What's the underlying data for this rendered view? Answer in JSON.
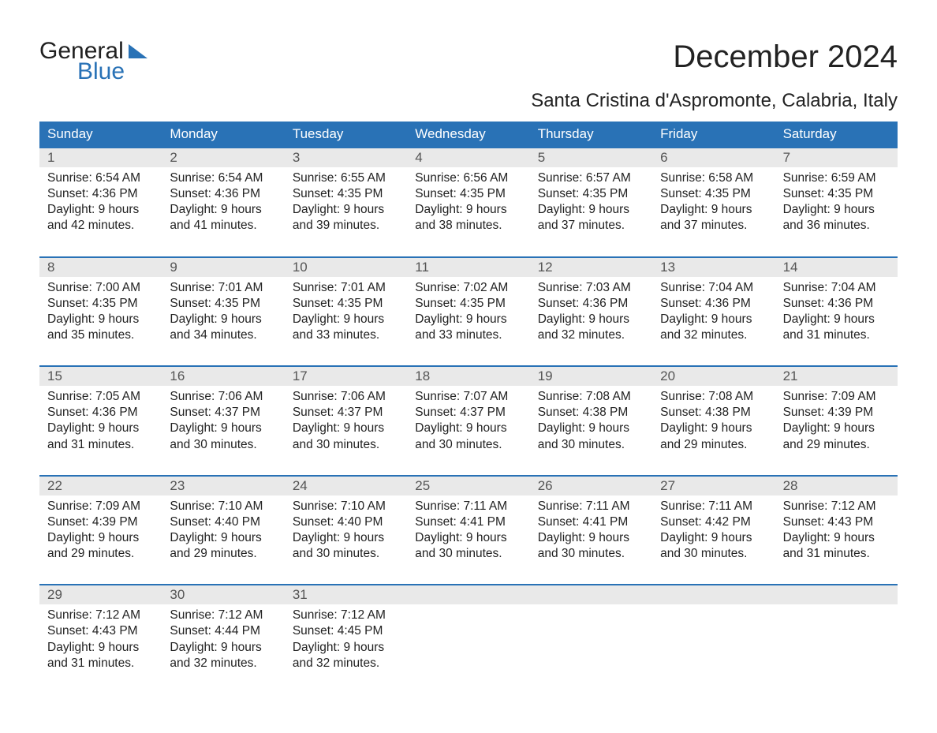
{
  "logo": {
    "line1": "General",
    "line2": "Blue",
    "text_color": "#202020",
    "blue_color": "#2972b6"
  },
  "title": "December 2024",
  "location": "Santa Cristina d'Aspromonte, Calabria, Italy",
  "colors": {
    "header_bg": "#2972b6",
    "header_text": "#ffffff",
    "daynum_bg": "#e9e9e9",
    "daynum_text": "#555555",
    "body_text": "#222222",
    "week_rule": "#2972b6",
    "page_bg": "#ffffff"
  },
  "typography": {
    "title_fontsize_pt": 30,
    "location_fontsize_pt": 18,
    "dayhead_fontsize_pt": 13,
    "daynum_fontsize_pt": 13,
    "cell_fontsize_pt": 12,
    "font_family": "Arial"
  },
  "layout": {
    "columns": 7,
    "weeks": 5
  },
  "day_headers": [
    "Sunday",
    "Monday",
    "Tuesday",
    "Wednesday",
    "Thursday",
    "Friday",
    "Saturday"
  ],
  "labels": {
    "sunrise": "Sunrise:",
    "sunset": "Sunset:",
    "daylight": "Daylight:"
  },
  "weeks": [
    [
      {
        "n": "1",
        "sunrise": "6:54 AM",
        "sunset": "4:36 PM",
        "dl1": "9 hours",
        "dl2": "and 42 minutes."
      },
      {
        "n": "2",
        "sunrise": "6:54 AM",
        "sunset": "4:36 PM",
        "dl1": "9 hours",
        "dl2": "and 41 minutes."
      },
      {
        "n": "3",
        "sunrise": "6:55 AM",
        "sunset": "4:35 PM",
        "dl1": "9 hours",
        "dl2": "and 39 minutes."
      },
      {
        "n": "4",
        "sunrise": "6:56 AM",
        "sunset": "4:35 PM",
        "dl1": "9 hours",
        "dl2": "and 38 minutes."
      },
      {
        "n": "5",
        "sunrise": "6:57 AM",
        "sunset": "4:35 PM",
        "dl1": "9 hours",
        "dl2": "and 37 minutes."
      },
      {
        "n": "6",
        "sunrise": "6:58 AM",
        "sunset": "4:35 PM",
        "dl1": "9 hours",
        "dl2": "and 37 minutes."
      },
      {
        "n": "7",
        "sunrise": "6:59 AM",
        "sunset": "4:35 PM",
        "dl1": "9 hours",
        "dl2": "and 36 minutes."
      }
    ],
    [
      {
        "n": "8",
        "sunrise": "7:00 AM",
        "sunset": "4:35 PM",
        "dl1": "9 hours",
        "dl2": "and 35 minutes."
      },
      {
        "n": "9",
        "sunrise": "7:01 AM",
        "sunset": "4:35 PM",
        "dl1": "9 hours",
        "dl2": "and 34 minutes."
      },
      {
        "n": "10",
        "sunrise": "7:01 AM",
        "sunset": "4:35 PM",
        "dl1": "9 hours",
        "dl2": "and 33 minutes."
      },
      {
        "n": "11",
        "sunrise": "7:02 AM",
        "sunset": "4:35 PM",
        "dl1": "9 hours",
        "dl2": "and 33 minutes."
      },
      {
        "n": "12",
        "sunrise": "7:03 AM",
        "sunset": "4:36 PM",
        "dl1": "9 hours",
        "dl2": "and 32 minutes."
      },
      {
        "n": "13",
        "sunrise": "7:04 AM",
        "sunset": "4:36 PM",
        "dl1": "9 hours",
        "dl2": "and 32 minutes."
      },
      {
        "n": "14",
        "sunrise": "7:04 AM",
        "sunset": "4:36 PM",
        "dl1": "9 hours",
        "dl2": "and 31 minutes."
      }
    ],
    [
      {
        "n": "15",
        "sunrise": "7:05 AM",
        "sunset": "4:36 PM",
        "dl1": "9 hours",
        "dl2": "and 31 minutes."
      },
      {
        "n": "16",
        "sunrise": "7:06 AM",
        "sunset": "4:37 PM",
        "dl1": "9 hours",
        "dl2": "and 30 minutes."
      },
      {
        "n": "17",
        "sunrise": "7:06 AM",
        "sunset": "4:37 PM",
        "dl1": "9 hours",
        "dl2": "and 30 minutes."
      },
      {
        "n": "18",
        "sunrise": "7:07 AM",
        "sunset": "4:37 PM",
        "dl1": "9 hours",
        "dl2": "and 30 minutes."
      },
      {
        "n": "19",
        "sunrise": "7:08 AM",
        "sunset": "4:38 PM",
        "dl1": "9 hours",
        "dl2": "and 30 minutes."
      },
      {
        "n": "20",
        "sunrise": "7:08 AM",
        "sunset": "4:38 PM",
        "dl1": "9 hours",
        "dl2": "and 29 minutes."
      },
      {
        "n": "21",
        "sunrise": "7:09 AM",
        "sunset": "4:39 PM",
        "dl1": "9 hours",
        "dl2": "and 29 minutes."
      }
    ],
    [
      {
        "n": "22",
        "sunrise": "7:09 AM",
        "sunset": "4:39 PM",
        "dl1": "9 hours",
        "dl2": "and 29 minutes."
      },
      {
        "n": "23",
        "sunrise": "7:10 AM",
        "sunset": "4:40 PM",
        "dl1": "9 hours",
        "dl2": "and 29 minutes."
      },
      {
        "n": "24",
        "sunrise": "7:10 AM",
        "sunset": "4:40 PM",
        "dl1": "9 hours",
        "dl2": "and 30 minutes."
      },
      {
        "n": "25",
        "sunrise": "7:11 AM",
        "sunset": "4:41 PM",
        "dl1": "9 hours",
        "dl2": "and 30 minutes."
      },
      {
        "n": "26",
        "sunrise": "7:11 AM",
        "sunset": "4:41 PM",
        "dl1": "9 hours",
        "dl2": "and 30 minutes."
      },
      {
        "n": "27",
        "sunrise": "7:11 AM",
        "sunset": "4:42 PM",
        "dl1": "9 hours",
        "dl2": "and 30 minutes."
      },
      {
        "n": "28",
        "sunrise": "7:12 AM",
        "sunset": "4:43 PM",
        "dl1": "9 hours",
        "dl2": "and 31 minutes."
      }
    ],
    [
      {
        "n": "29",
        "sunrise": "7:12 AM",
        "sunset": "4:43 PM",
        "dl1": "9 hours",
        "dl2": "and 31 minutes."
      },
      {
        "n": "30",
        "sunrise": "7:12 AM",
        "sunset": "4:44 PM",
        "dl1": "9 hours",
        "dl2": "and 32 minutes."
      },
      {
        "n": "31",
        "sunrise": "7:12 AM",
        "sunset": "4:45 PM",
        "dl1": "9 hours",
        "dl2": "and 32 minutes."
      },
      null,
      null,
      null,
      null
    ]
  ]
}
